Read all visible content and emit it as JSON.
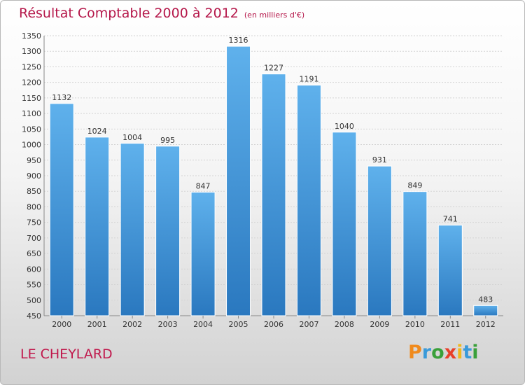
{
  "chart_data": {
    "type": "bar",
    "title": "Résultat Comptable 2000 à 2012",
    "subtitle": "(en milliers d'€)",
    "categories": [
      "2000",
      "2001",
      "2002",
      "2003",
      "2004",
      "2005",
      "2006",
      "2007",
      "2008",
      "2009",
      "2010",
      "2011",
      "2012"
    ],
    "values": [
      1132,
      1024,
      1004,
      995,
      847,
      1316,
      1227,
      1191,
      1040,
      931,
      849,
      741,
      483
    ],
    "ylim": [
      450,
      1350
    ],
    "yticks": [
      450,
      500,
      550,
      600,
      650,
      700,
      750,
      800,
      850,
      900,
      950,
      1000,
      1050,
      1100,
      1150,
      1200,
      1250,
      1300,
      1350
    ],
    "grid": true,
    "xlabel": "",
    "ylabel": ""
  },
  "place_name": "LE CHEYLARD",
  "brand": {
    "letters": [
      "P",
      "r",
      "o",
      "x",
      "i",
      "t",
      "i"
    ],
    "colors": [
      "#f08a1c",
      "#3a9ad9",
      "#3aa03a",
      "#e8402a",
      "#f0b81c",
      "#3a9ad9",
      "#3aa03a"
    ]
  },
  "colors": {
    "bar_light": "#5fb1ec",
    "bar_dark": "#2a78bf",
    "title": "#b5174a"
  }
}
